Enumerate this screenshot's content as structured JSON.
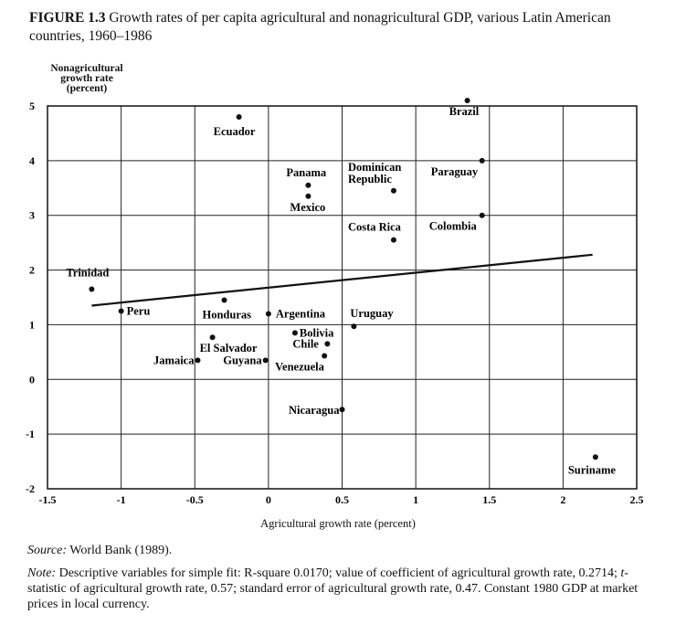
{
  "caption": {
    "figure_label": "FIGURE 1.3",
    "text": "Growth rates of per capita agricultural and nonagricultural GDP, various Latin American countries, 1960–1986"
  },
  "chart_data": {
    "type": "scatter",
    "ylabel_lines": [
      "Nonagricultural",
      "growth rate",
      "(percent)"
    ],
    "xlabel": "Agricultural growth rate (percent)",
    "xlim": [
      -1.5,
      2.5
    ],
    "ylim": [
      -2,
      5
    ],
    "xticks": [
      "-1.5",
      "-1",
      "-0.5",
      "0",
      "0.5",
      "1",
      "1.5",
      "2",
      "2.5"
    ],
    "yticks": [
      "-2",
      "-1",
      "0",
      "1",
      "2",
      "3",
      "4",
      "5"
    ],
    "grid": true,
    "points": [
      {
        "label": "Brazil",
        "x": 1.35,
        "y": 5.1
      },
      {
        "label": "Ecuador",
        "x": -0.2,
        "y": 4.8
      },
      {
        "label": "Paraguay",
        "x": 1.45,
        "y": 4.0
      },
      {
        "label": "Panama",
        "x": 0.27,
        "y": 3.55
      },
      {
        "label": "Dominican Republic",
        "x": 0.85,
        "y": 3.45
      },
      {
        "label": "Mexico",
        "x": 0.27,
        "y": 3.35
      },
      {
        "label": "Colombia",
        "x": 1.45,
        "y": 3.0
      },
      {
        "label": "Costa Rica",
        "x": 0.85,
        "y": 2.55
      },
      {
        "label": "Trinidad",
        "x": -1.2,
        "y": 1.65
      },
      {
        "label": "Honduras",
        "x": -0.3,
        "y": 1.45
      },
      {
        "label": "Peru",
        "x": -1.0,
        "y": 1.25
      },
      {
        "label": "Argentina",
        "x": 0.0,
        "y": 1.2
      },
      {
        "label": "Uruguay",
        "x": 0.58,
        "y": 0.97
      },
      {
        "label": "Bolivia",
        "x": 0.18,
        "y": 0.85
      },
      {
        "label": "El Salvador",
        "x": -0.38,
        "y": 0.77
      },
      {
        "label": "Chile",
        "x": 0.4,
        "y": 0.65
      },
      {
        "label": "Venezuela",
        "x": 0.38,
        "y": 0.43
      },
      {
        "label": "Jamaica",
        "x": -0.48,
        "y": 0.35
      },
      {
        "label": "Guyana",
        "x": -0.02,
        "y": 0.35
      },
      {
        "label": "Nicaragua",
        "x": 0.5,
        "y": -0.55
      },
      {
        "label": "Suriname",
        "x": 2.22,
        "y": -1.42
      }
    ],
    "fit_line": {
      "x": [
        -1.2,
        2.2
      ],
      "y": [
        1.35,
        2.28
      ]
    }
  },
  "source": {
    "label": "Source:",
    "text": " World Bank (1989)."
  },
  "note": {
    "label": "Note:",
    "text_1": " Descriptive variables for simple fit: R-square 0.0170; value of coefficient of agricultural growth rate, 0.2714; ",
    "t_symbol": "t",
    "text_2": "-statistic of agricultural growth rate, 0.57; standard error of agricultural growth rate, 0.47. Constant 1980 GDP at market prices in local currency."
  }
}
